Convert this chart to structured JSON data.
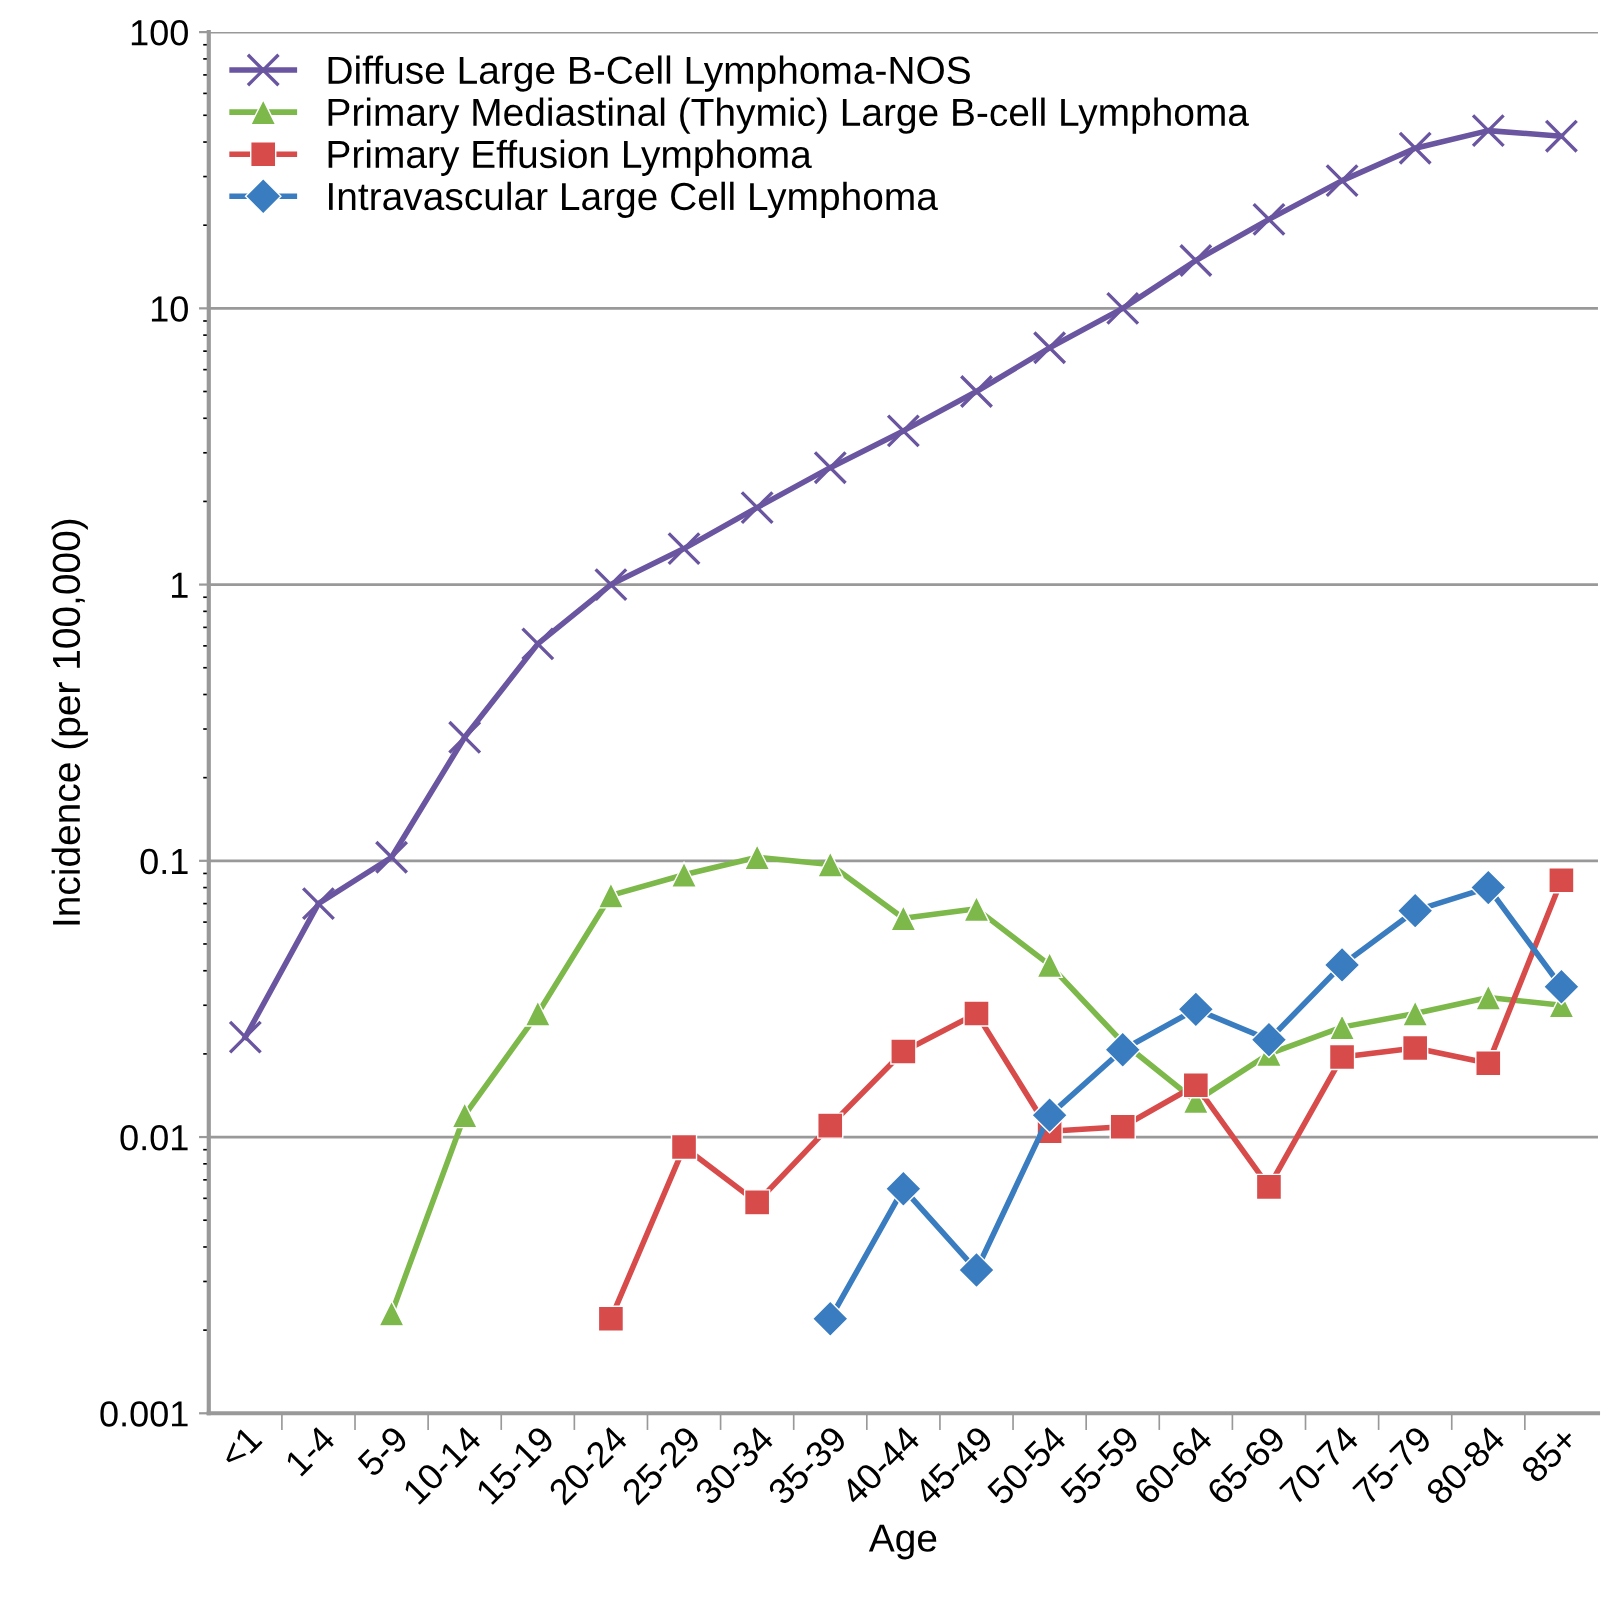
{
  "chart_data": {
    "type": "line",
    "xlabel": "Age",
    "ylabel": "Incidence (per 100,000)",
    "categories": [
      "<1",
      "1-4",
      "5-9",
      "10-14",
      "15-19",
      "20-24",
      "25-29",
      "30-34",
      "35-39",
      "40-44",
      "45-49",
      "50-54",
      "55-59",
      "60-64",
      "65-69",
      "70-74",
      "75-79",
      "80-84",
      "85+"
    ],
    "series": [
      {
        "name": "Diffuse Large B-Cell Lymphoma-NOS",
        "color": "#6a55a0",
        "marker": "cross",
        "values": [
          0.023,
          0.07,
          0.103,
          0.28,
          0.61,
          1.0,
          1.35,
          1.9,
          2.65,
          3.6,
          5.0,
          7.2,
          10,
          14.9,
          21,
          29,
          38,
          44,
          42
        ]
      },
      {
        "name": "Primary Mediastinal (Thymic) Large B-cell Lymphoma",
        "color": "#7db84a",
        "marker": "triangle",
        "values": [
          null,
          null,
          0.0023,
          0.012,
          0.028,
          0.075,
          0.089,
          0.103,
          0.097,
          0.062,
          0.067,
          0.042,
          0.022,
          0.0135,
          0.02,
          0.025,
          0.028,
          0.032,
          0.03
        ]
      },
      {
        "name": "Primary Effusion Lymphoma",
        "color": "#d84b4b",
        "marker": "square",
        "values": [
          null,
          null,
          null,
          null,
          null,
          0.0022,
          0.0092,
          0.0058,
          0.011,
          0.0204,
          0.028,
          0.0105,
          0.0109,
          0.0154,
          0.0066,
          0.0195,
          0.021,
          0.0185,
          0.085
        ]
      },
      {
        "name": "Intravascular Large Cell Lymphoma",
        "color": "#3a7cc0",
        "marker": "diamond",
        "values": [
          null,
          null,
          null,
          null,
          null,
          null,
          null,
          null,
          0.0022,
          0.0065,
          0.0033,
          0.012,
          0.0207,
          0.029,
          0.0225,
          0.042,
          0.066,
          0.08,
          0.035
        ]
      }
    ],
    "log": "y",
    "ylim": [
      0.001,
      100
    ],
    "yticks": [
      0.001,
      0.01,
      0.1,
      1,
      10,
      100
    ],
    "grid": "y",
    "legend": "top left",
    "line_style": "solid"
  }
}
